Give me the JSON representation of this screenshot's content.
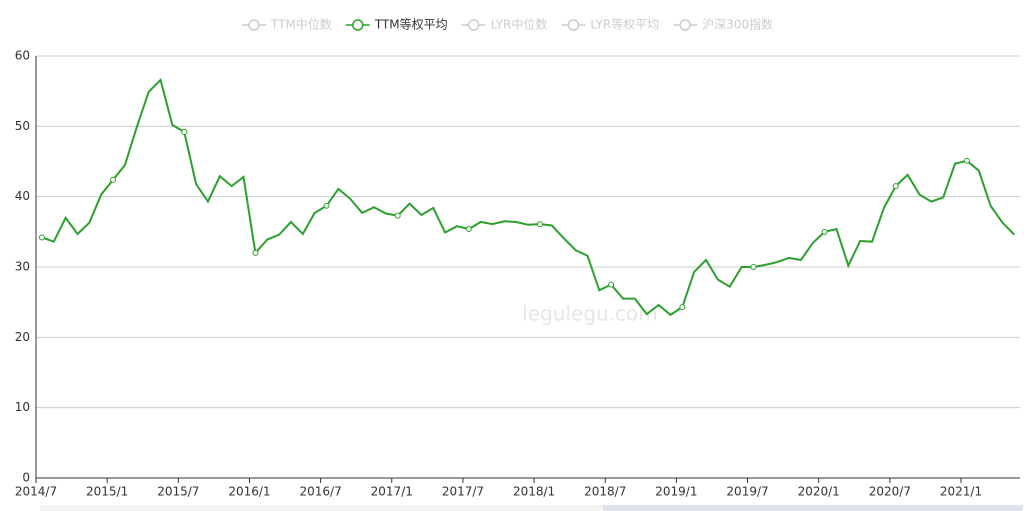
{
  "chart_data": {
    "type": "line",
    "watermark": "legulegu.com",
    "categories": [
      "2014/7",
      null,
      null,
      null,
      null,
      null,
      "2015/1",
      null,
      null,
      null,
      null,
      null,
      "2015/7",
      null,
      null,
      null,
      null,
      null,
      "2016/1",
      null,
      null,
      null,
      null,
      null,
      "2016/7",
      null,
      null,
      null,
      null,
      null,
      "2017/1",
      null,
      null,
      null,
      null,
      null,
      "2017/7",
      null,
      null,
      null,
      null,
      null,
      "2018/1",
      null,
      null,
      null,
      null,
      null,
      "2018/7",
      null,
      null,
      null,
      null,
      null,
      "2019/1",
      null,
      null,
      null,
      null,
      null,
      "2019/7",
      null,
      null,
      null,
      null,
      null,
      "2020/1",
      null,
      null,
      null,
      null,
      null,
      "2020/7",
      null,
      null,
      null,
      null,
      null,
      "2021/1",
      null,
      null,
      null,
      null
    ],
    "series": [
      {
        "name": "TTM中位数",
        "color": "#cccccc",
        "visible": false
      },
      {
        "name": "TTM等权平均",
        "color": "#2ca02c",
        "visible": true,
        "values": [
          34.2,
          33.6,
          37.0,
          34.7,
          36.3,
          40.3,
          42.4,
          44.5,
          49.9,
          54.9,
          56.6,
          50.2,
          49.2,
          41.8,
          39.3,
          42.9,
          41.5,
          42.8,
          32.0,
          33.9,
          34.6,
          36.4,
          34.7,
          37.7,
          38.7,
          41.1,
          39.7,
          37.7,
          38.5,
          37.6,
          37.3,
          39.0,
          37.4,
          38.4,
          34.9,
          35.8,
          35.4,
          36.4,
          36.1,
          36.5,
          36.4,
          36.0,
          36.1,
          35.9,
          34.1,
          32.4,
          31.6,
          26.7,
          27.5,
          25.5,
          25.5,
          23.3,
          24.6,
          23.2,
          24.3,
          29.3,
          31.0,
          28.2,
          27.2,
          30.0,
          30.0,
          30.3,
          30.7,
          31.3,
          31.0,
          33.4,
          35.0,
          35.4,
          30.2,
          33.7,
          33.6,
          38.4,
          41.5,
          43.1,
          40.3,
          39.3,
          39.9,
          44.7,
          45.1,
          43.7,
          38.7,
          36.3,
          34.6
        ]
      },
      {
        "name": "LYR中位数",
        "color": "#cccccc",
        "visible": false
      },
      {
        "name": "LYR等权平均",
        "color": "#cccccc",
        "visible": false
      },
      {
        "name": "沪深300指数",
        "color": "#cccccc",
        "visible": false
      }
    ],
    "ylim": [
      0,
      60
    ],
    "yticks": [
      0,
      10,
      20,
      30,
      40,
      50,
      60
    ],
    "grid": true
  }
}
